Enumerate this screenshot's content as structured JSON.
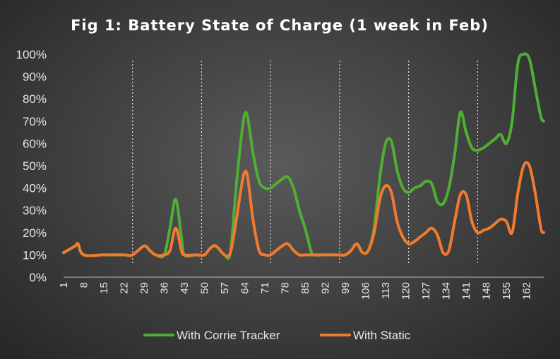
{
  "chart_data": {
    "type": "line",
    "title": "Fig 1: Battery State of Charge (1 week in Feb)",
    "xlabel": "",
    "ylabel": "",
    "ylim": [
      0,
      100
    ],
    "xlim": [
      1,
      168
    ],
    "y_tick_labels": [
      "0%",
      "10%",
      "20%",
      "30%",
      "40%",
      "50%",
      "60%",
      "70%",
      "80%",
      "90%",
      "100%"
    ],
    "y_tick_values": [
      0,
      10,
      20,
      30,
      40,
      50,
      60,
      70,
      80,
      90,
      100
    ],
    "x_tick_labels": [
      "1",
      "8",
      "15",
      "22",
      "29",
      "36",
      "43",
      "50",
      "57",
      "64",
      "71",
      "78",
      "85",
      "92",
      "99",
      "106",
      "113",
      "120",
      "127",
      "134",
      "141",
      "148",
      "155",
      "162"
    ],
    "x_tick_values": [
      1,
      8,
      15,
      22,
      29,
      36,
      43,
      50,
      57,
      64,
      71,
      78,
      85,
      92,
      99,
      106,
      113,
      120,
      127,
      134,
      141,
      148,
      155,
      162
    ],
    "day_dividers": [
      25,
      49,
      73,
      97,
      121,
      145
    ],
    "grid": false,
    "legend_position": "bottom",
    "series": [
      {
        "name": "With Corrie Tracker",
        "color": "#4fae33",
        "x": [
          1,
          5,
          6,
          8,
          15,
          22,
          25,
          29,
          31,
          33,
          36,
          38,
          40,
          42,
          43,
          47,
          50,
          52,
          54,
          57,
          59,
          61,
          63,
          64,
          65,
          67,
          69,
          71,
          73,
          75,
          77,
          79,
          81,
          83,
          85,
          87,
          88,
          92,
          96,
          99,
          101,
          103,
          105,
          107,
          109,
          111,
          113,
          115,
          117,
          119,
          121,
          123,
          125,
          127,
          129,
          131,
          133,
          135,
          137,
          139,
          141,
          143,
          145,
          147,
          149,
          151,
          153,
          155,
          157,
          159,
          161,
          163,
          165,
          167,
          168
        ],
        "values": [
          11,
          14,
          15,
          10,
          10,
          10,
          10,
          14,
          12,
          10,
          10,
          22,
          35,
          18,
          10,
          10,
          10,
          13,
          14,
          10,
          11,
          40,
          65,
          73,
          72,
          55,
          43,
          40,
          40,
          42,
          44,
          45,
          40,
          30,
          22,
          12,
          10,
          10,
          10,
          10,
          12,
          15,
          11,
          12,
          22,
          45,
          60,
          61,
          48,
          40,
          38,
          40,
          41,
          43,
          42,
          34,
          33,
          40,
          55,
          74,
          65,
          58,
          57,
          58,
          60,
          62,
          64,
          60,
          70,
          96,
          100,
          98,
          85,
          72,
          70
        ]
      },
      {
        "name": "With Static",
        "color": "#f07b2e",
        "x": [
          1,
          5,
          6,
          8,
          15,
          22,
          25,
          29,
          31,
          33,
          36,
          38,
          40,
          42,
          43,
          47,
          50,
          52,
          54,
          57,
          59,
          61,
          63,
          64,
          65,
          67,
          69,
          71,
          73,
          75,
          77,
          79,
          81,
          83,
          85,
          87,
          88,
          92,
          96,
          99,
          101,
          103,
          105,
          107,
          109,
          111,
          113,
          115,
          117,
          119,
          121,
          123,
          125,
          127,
          129,
          131,
          133,
          135,
          137,
          139,
          141,
          143,
          145,
          147,
          149,
          151,
          153,
          155,
          157,
          159,
          161,
          163,
          165,
          167,
          168
        ],
        "values": [
          11,
          14,
          15,
          10,
          10,
          10,
          10,
          14,
          12,
          10,
          10,
          12,
          22,
          12,
          10,
          10,
          10,
          13,
          14,
          10,
          11,
          25,
          42,
          47,
          45,
          25,
          12,
          10,
          10,
          12,
          14,
          15,
          12,
          10,
          10,
          10,
          10,
          10,
          10,
          10,
          12,
          15,
          11,
          12,
          20,
          35,
          41,
          38,
          25,
          18,
          15,
          16,
          18,
          20,
          22,
          19,
          11,
          12,
          25,
          37,
          37,
          25,
          20,
          21,
          22,
          24,
          26,
          25,
          20,
          38,
          50,
          50,
          38,
          22,
          20
        ]
      }
    ]
  }
}
